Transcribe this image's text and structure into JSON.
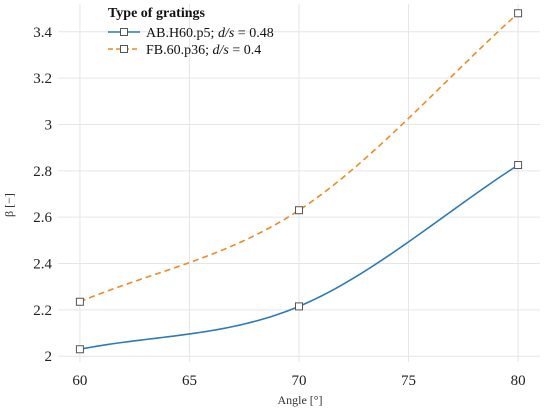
{
  "chart_data": {
    "type": "line",
    "xlabel": "Angle [°]",
    "ylabel": "β [−]",
    "x_ticks": [
      60,
      65,
      70,
      75,
      80
    ],
    "y_ticks": [
      2,
      2.2,
      2.4,
      2.6,
      2.8,
      3,
      3.2,
      3.4
    ],
    "x_tick_labels": [
      "60",
      "65",
      "70",
      "75",
      "80"
    ],
    "y_tick_labels": [
      "2",
      "2.2",
      "2.4",
      "2.6",
      "2.8",
      "3",
      "3.2",
      "3.4"
    ],
    "xlim": [
      59,
      81
    ],
    "ylim": [
      1.975,
      3.52
    ],
    "grid": true,
    "legend": {
      "title": "Type of gratings",
      "placement": "top-left"
    },
    "series": [
      {
        "name": "AB.H60.p5; d/s = 0.48",
        "legend_prefix": "AB.H60.p5; ",
        "legend_italic": "d/s",
        "legend_suffix": " = 0.48",
        "color": "#2b7bb9",
        "dash": "solid",
        "x": [
          60,
          70,
          80
        ],
        "y": [
          2.03,
          2.215,
          2.825
        ]
      },
      {
        "name": "FB.60.p36; d/s = 0.4",
        "legend_prefix": "FB.60.p36; ",
        "legend_italic": "d/s",
        "legend_suffix": " = 0.4",
        "color": "#f08a24",
        "dash": "dashed",
        "x": [
          60,
          70,
          80
        ],
        "y": [
          2.235,
          2.63,
          3.48
        ]
      }
    ]
  }
}
